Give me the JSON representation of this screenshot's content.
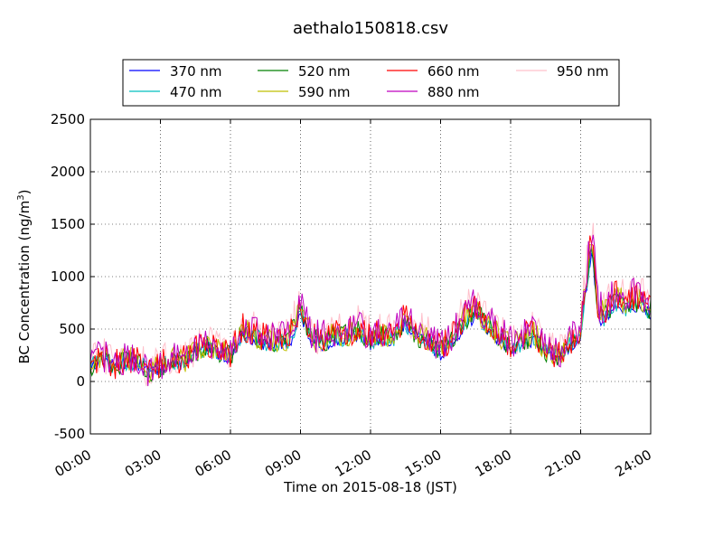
{
  "chart_data": {
    "type": "line",
    "title": "aethalo150818.csv",
    "xlabel": "Time on 2015-08-18 (JST)",
    "ylabel": "BC Concentration (ng/m",
    "ylabel_unit_superscript": "3",
    "ylabel_suffix": ")",
    "xlim": [
      "00:00",
      "24:00"
    ],
    "ylim": [
      -500,
      2500
    ],
    "x_ticks": [
      "00:00",
      "03:00",
      "06:00",
      "09:00",
      "12:00",
      "15:00",
      "18:00",
      "21:00",
      "24:00"
    ],
    "y_ticks": [
      -500,
      0,
      500,
      1000,
      1500,
      2000,
      2500
    ],
    "grid": true,
    "grid_style": "dotted",
    "legend_placement": "top-center",
    "series": [
      {
        "name": "370 nm",
        "color": "#0000ff"
      },
      {
        "name": "470 nm",
        "color": "#00bfbf"
      },
      {
        "name": "520 nm",
        "color": "#008000"
      },
      {
        "name": "590 nm",
        "color": "#bfbf00"
      },
      {
        "name": "660 nm",
        "color": "#ff0000"
      },
      {
        "name": "880 nm",
        "color": "#bf00bf"
      },
      {
        "name": "950 nm",
        "color": "#ffc0cb"
      }
    ],
    "x": [
      "00:00",
      "00:30",
      "01:00",
      "01:30",
      "02:00",
      "02:30",
      "03:00",
      "03:30",
      "04:00",
      "04:30",
      "05:00",
      "05:30",
      "06:00",
      "06:30",
      "07:00",
      "07:30",
      "08:00",
      "08:30",
      "09:00",
      "09:30",
      "10:00",
      "10:30",
      "11:00",
      "11:30",
      "12:00",
      "12:30",
      "13:00",
      "13:30",
      "14:00",
      "14:30",
      "15:00",
      "15:30",
      "16:00",
      "16:30",
      "17:00",
      "17:30",
      "18:00",
      "18:30",
      "19:00",
      "19:30",
      "20:00",
      "20:30",
      "21:00",
      "21:15",
      "21:30",
      "21:45",
      "22:00",
      "22:30",
      "23:00",
      "23:30",
      "24:00"
    ],
    "base_values": [
      150,
      250,
      150,
      200,
      200,
      100,
      150,
      200,
      200,
      300,
      350,
      300,
      250,
      500,
      450,
      400,
      400,
      400,
      700,
      400,
      400,
      450,
      450,
      500,
      400,
      450,
      450,
      600,
      450,
      400,
      300,
      400,
      600,
      700,
      550,
      450,
      350,
      400,
      450,
      300,
      250,
      350,
      500,
      1000,
      1350,
      650,
      650,
      800,
      750,
      800,
      700
    ]
  }
}
